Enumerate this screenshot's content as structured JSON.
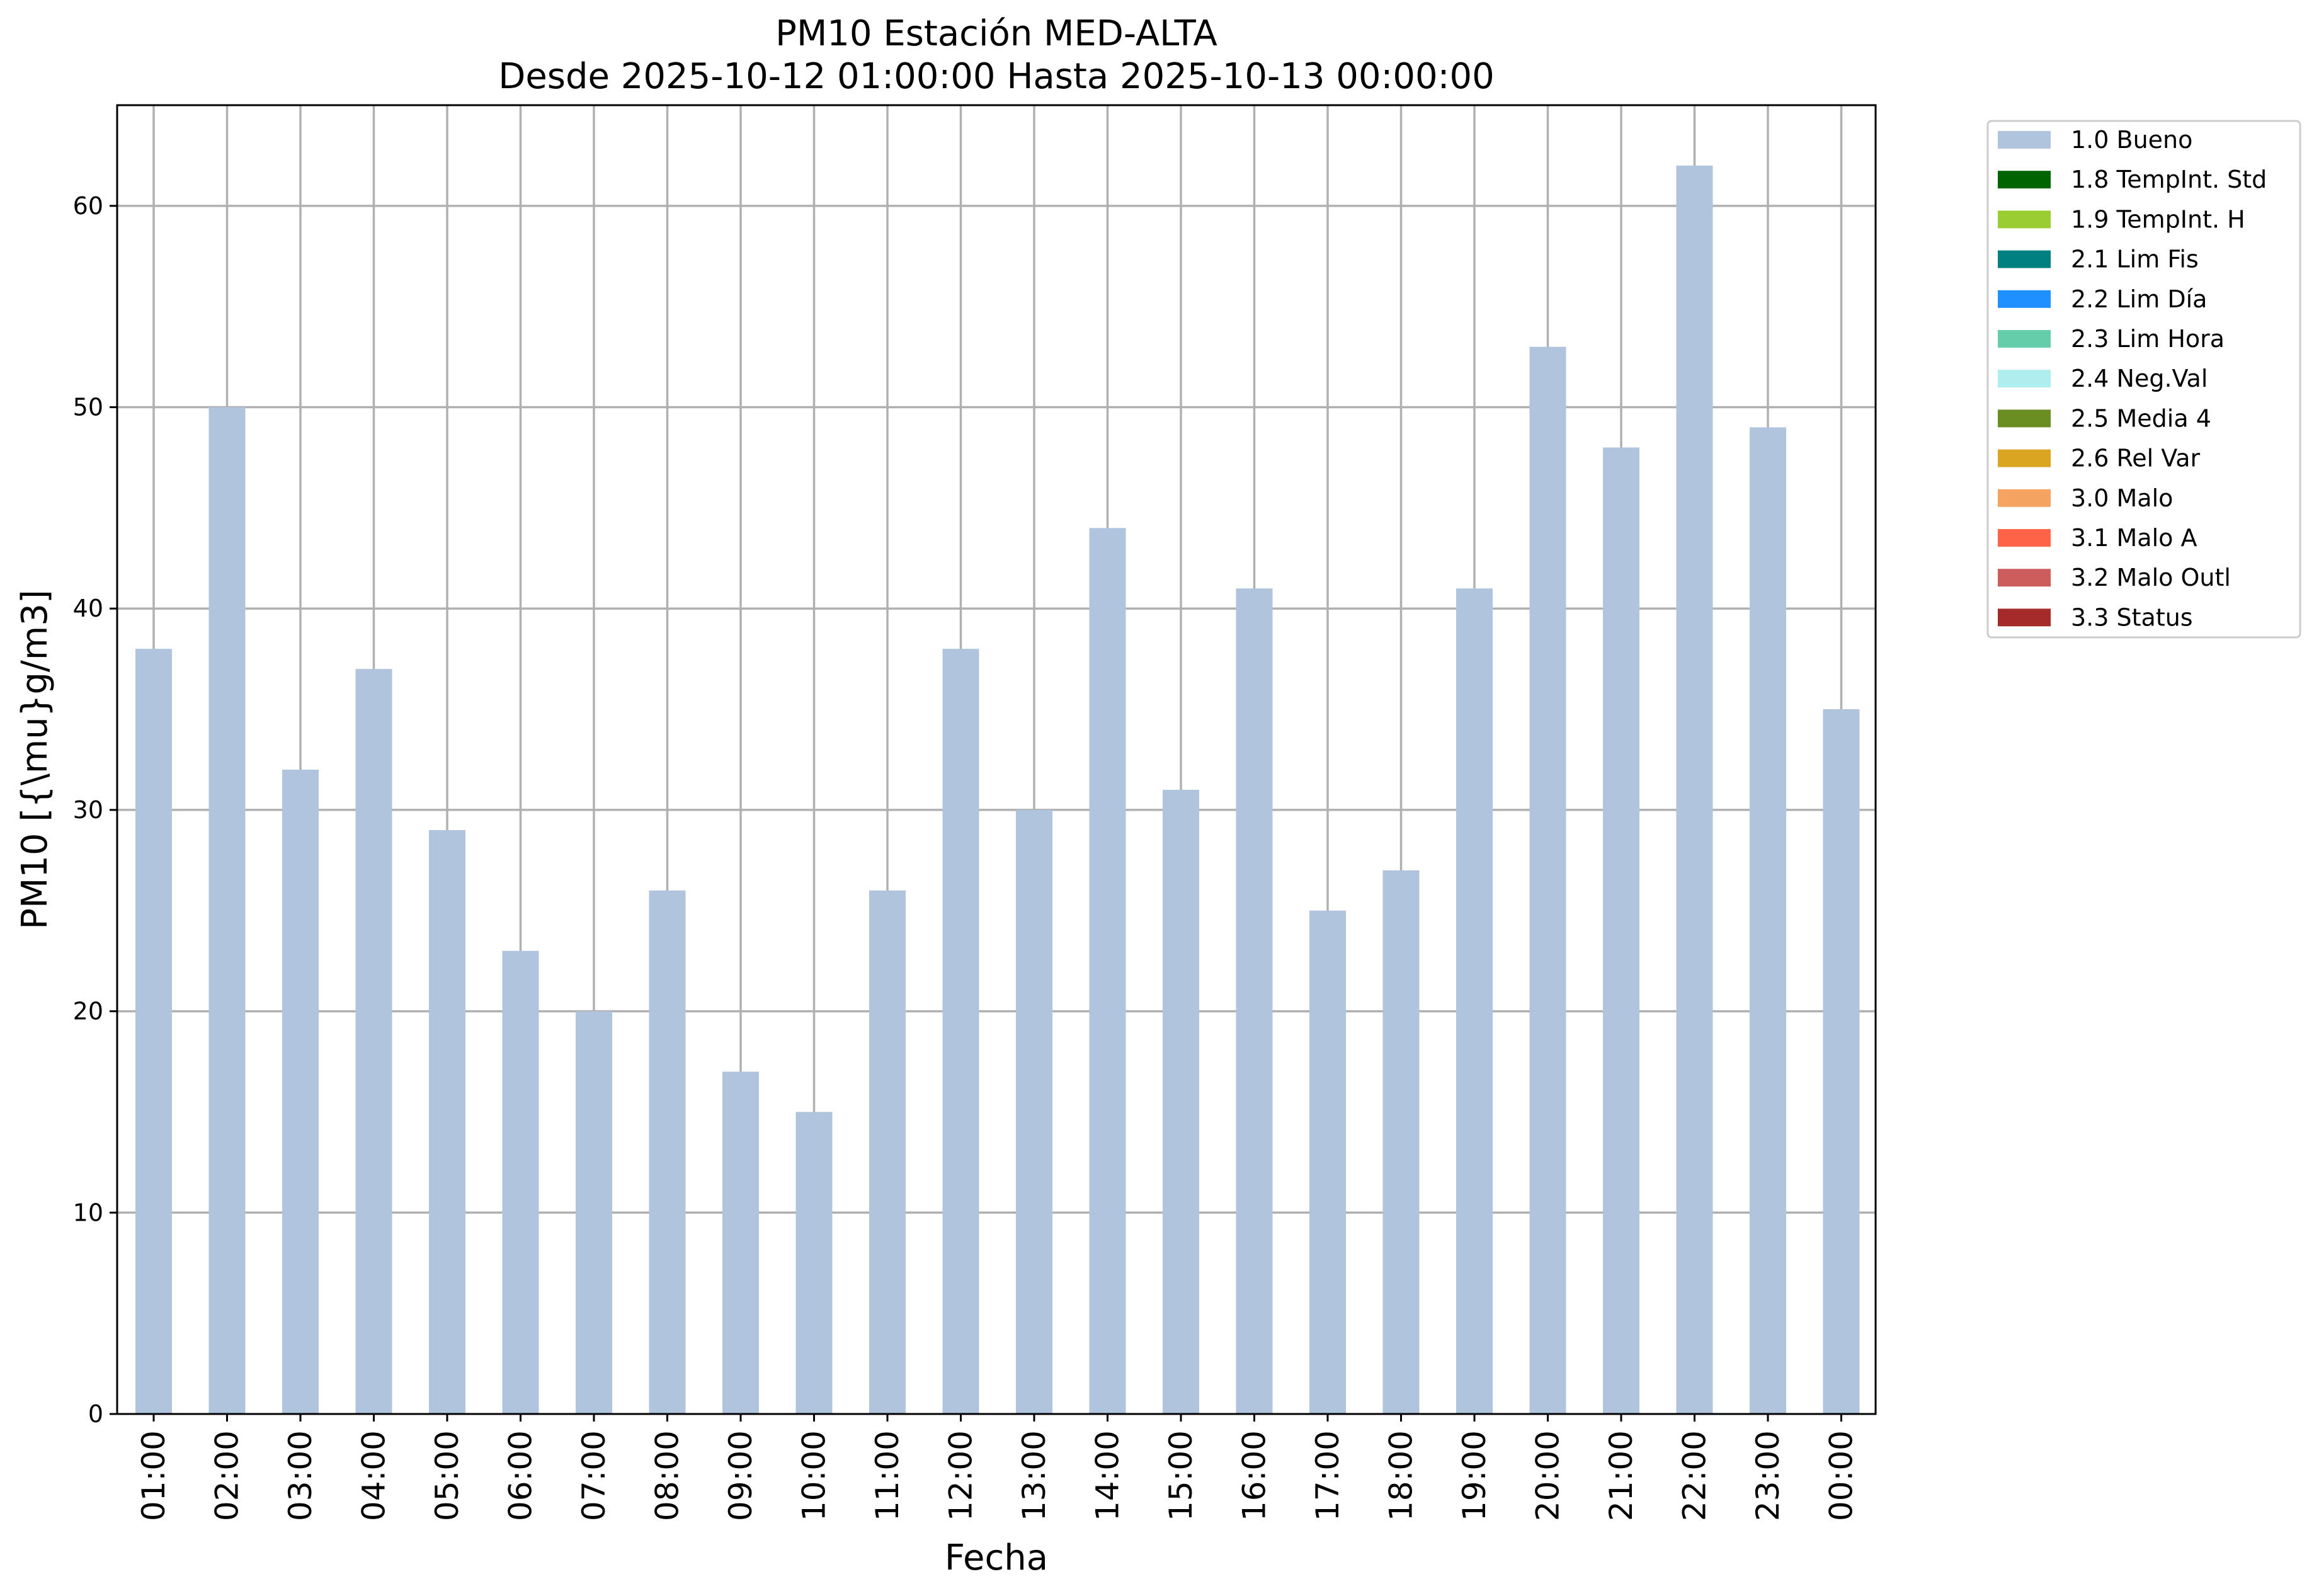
{
  "chart_data": {
    "type": "bar",
    "title": "PM10 Estación MED-ALTA",
    "subtitle": "Desde 2025-10-12 01:00:00 Hasta 2025-10-13 00:00:00",
    "xlabel": "Fecha",
    "ylabel": "PM10 [{\\mu}g/m3]",
    "ylim": [
      0,
      65
    ],
    "yticks": [
      0,
      10,
      20,
      30,
      40,
      50,
      60
    ],
    "grid": true,
    "legend_position": "outside-right-top",
    "categories": [
      "01:00",
      "02:00",
      "03:00",
      "04:00",
      "05:00",
      "06:00",
      "07:00",
      "08:00",
      "09:00",
      "10:00",
      "11:00",
      "12:00",
      "13:00",
      "14:00",
      "15:00",
      "16:00",
      "17:00",
      "18:00",
      "19:00",
      "20:00",
      "21:00",
      "22:00",
      "23:00",
      "00:00"
    ],
    "series": [
      {
        "name": "1.0 Bueno",
        "color": "#b0c4de",
        "values": [
          38,
          50,
          32,
          37,
          29,
          23,
          20,
          26,
          17,
          15,
          26,
          38,
          30,
          44,
          31,
          41,
          25,
          27,
          41,
          53,
          48,
          62,
          49,
          35
        ]
      }
    ],
    "legend": [
      {
        "label": "1.0 Bueno",
        "color": "#b0c4de"
      },
      {
        "label": "1.8 TempInt. Std",
        "color": "#006400"
      },
      {
        "label": "1.9 TempInt. H",
        "color": "#9acd32"
      },
      {
        "label": "2.1 Lim Fis",
        "color": "#008080"
      },
      {
        "label": "2.2 Lim Día",
        "color": "#1e90ff"
      },
      {
        "label": "2.3 Lim Hora",
        "color": "#66cdaa"
      },
      {
        "label": "2.4 Neg.Val",
        "color": "#afeeee"
      },
      {
        "label": "2.5 Media 4",
        "color": "#6b8e23"
      },
      {
        "label": "2.6 Rel Var",
        "color": "#daa520"
      },
      {
        "label": "3.0 Malo",
        "color": "#f4a460"
      },
      {
        "label": "3.1 Malo A",
        "color": "#ff6347"
      },
      {
        "label": "3.2 Malo Outl",
        "color": "#cd5c5c"
      },
      {
        "label": "3.3 Status",
        "color": "#a52a2a"
      }
    ]
  }
}
